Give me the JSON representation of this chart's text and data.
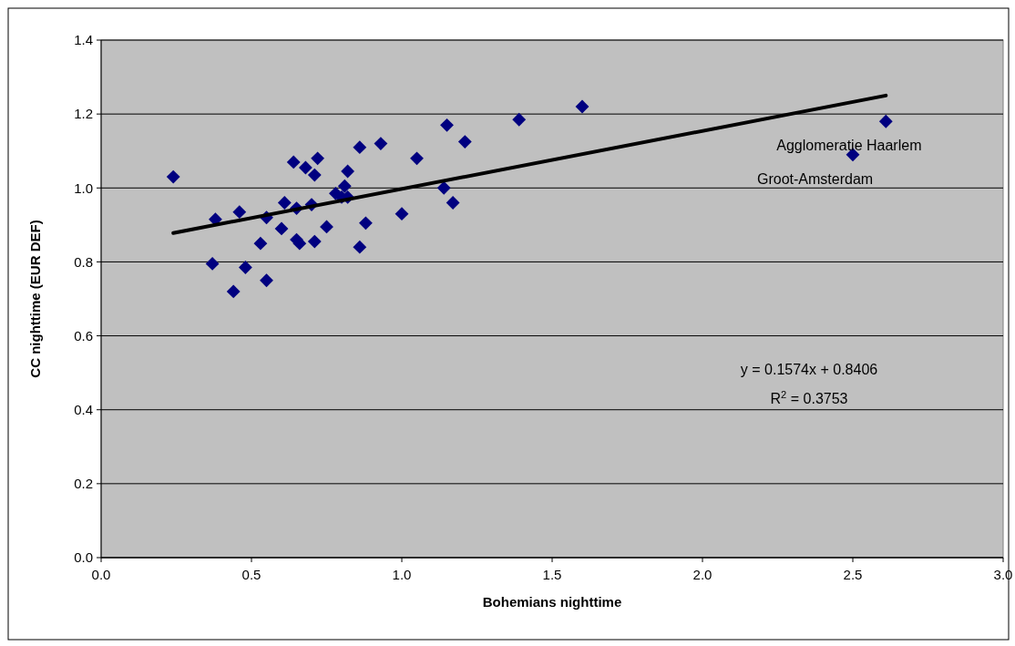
{
  "chart_data": {
    "type": "scatter",
    "xlabel": "Bohemians nighttime",
    "ylabel": "CC nighttime (EUR DEF)",
    "xlim": [
      0,
      3
    ],
    "ylim": [
      0,
      1.4
    ],
    "xticks": [
      {
        "value": 0,
        "label": "0.0"
      },
      {
        "value": 0.5,
        "label": "0.5"
      },
      {
        "value": 1,
        "label": "1.0"
      },
      {
        "value": 1.5,
        "label": "1.5"
      },
      {
        "value": 2,
        "label": "2.0"
      },
      {
        "value": 2.5,
        "label": "2.5"
      },
      {
        "value": 3,
        "label": "3.0"
      }
    ],
    "yticks": [
      {
        "value": 0,
        "label": "0.0"
      },
      {
        "value": 0.2,
        "label": "0.2"
      },
      {
        "value": 0.4,
        "label": "0.4"
      },
      {
        "value": 0.6,
        "label": "0.6"
      },
      {
        "value": 0.8,
        "label": "0.8"
      },
      {
        "value": 1,
        "label": "1.0"
      },
      {
        "value": 1.2,
        "label": "1.2"
      },
      {
        "value": 1.4,
        "label": "1.4"
      }
    ],
    "grid": "y",
    "marker": "diamond",
    "series": [
      {
        "type": "scatter",
        "color": "#000080",
        "x": [
          0.24,
          0.37,
          0.38,
          0.44,
          0.46,
          0.48,
          0.53,
          0.55,
          0.55,
          0.6,
          0.61,
          0.64,
          0.65,
          0.65,
          0.66,
          0.68,
          0.7,
          0.71,
          0.71,
          0.72,
          0.75,
          0.78,
          0.8,
          0.81,
          0.82,
          0.82,
          0.86,
          0.86,
          0.88,
          0.93,
          1.0,
          1.05,
          1.14,
          1.15,
          1.17,
          1.21,
          1.39,
          1.6,
          2.5,
          2.61
        ],
        "values": [
          1.03,
          0.795,
          0.915,
          0.72,
          0.935,
          0.785,
          0.85,
          0.92,
          0.75,
          0.89,
          0.96,
          1.07,
          0.945,
          0.86,
          0.85,
          1.055,
          0.955,
          0.855,
          1.035,
          1.08,
          0.895,
          0.985,
          0.975,
          1.005,
          1.045,
          0.975,
          1.11,
          0.84,
          0.905,
          1.12,
          0.93,
          1.08,
          1.0,
          1.17,
          0.96,
          1.125,
          1.185,
          1.22,
          1.09,
          1.18
        ]
      },
      {
        "type": "line",
        "color": "#000000",
        "line_style": "solid",
        "marker": "none",
        "x": [
          0.24,
          2.61
        ],
        "values": [
          0.878,
          1.25
        ]
      }
    ],
    "annotations": [
      {
        "text": "Agglomeratie Haarlem",
        "x": 2.61,
        "y": 1.18
      },
      {
        "text": "Groot-Amsterdam",
        "x": 2.5,
        "y": 1.09
      },
      "y = 0.1574x + 0.8406",
      "R$^{2}$ = 0.3753"
    ]
  }
}
